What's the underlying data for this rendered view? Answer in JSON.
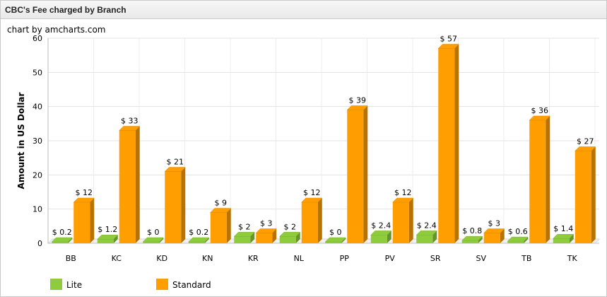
{
  "panel": {
    "title": "CBC's Fee charged by Branch"
  },
  "chart_data": {
    "type": "bar",
    "credit": "chart by amcharts.com",
    "ylabel": "Amount in US Dollar",
    "xlabel": "",
    "ylim": [
      0,
      60
    ],
    "yticks": [
      0,
      10,
      20,
      30,
      40,
      50,
      60
    ],
    "grid": true,
    "legend_position": "bottom-left",
    "value_prefix": "$ ",
    "categories": [
      "BB",
      "KC",
      "KD",
      "KN",
      "KR",
      "NL",
      "PP",
      "PV",
      "SR",
      "SV",
      "TB",
      "TK"
    ],
    "series": [
      {
        "name": "Lite",
        "color": "#8fcc3c",
        "values": [
          0.2,
          1.2,
          0,
          0.2,
          2,
          2,
          0,
          2.4,
          2.4,
          0.8,
          0.6,
          1.4
        ]
      },
      {
        "name": "Standard",
        "color": "#ff9e01",
        "values": [
          12,
          33,
          21,
          9,
          3,
          12,
          39,
          12,
          57,
          3,
          36,
          27
        ]
      }
    ]
  }
}
